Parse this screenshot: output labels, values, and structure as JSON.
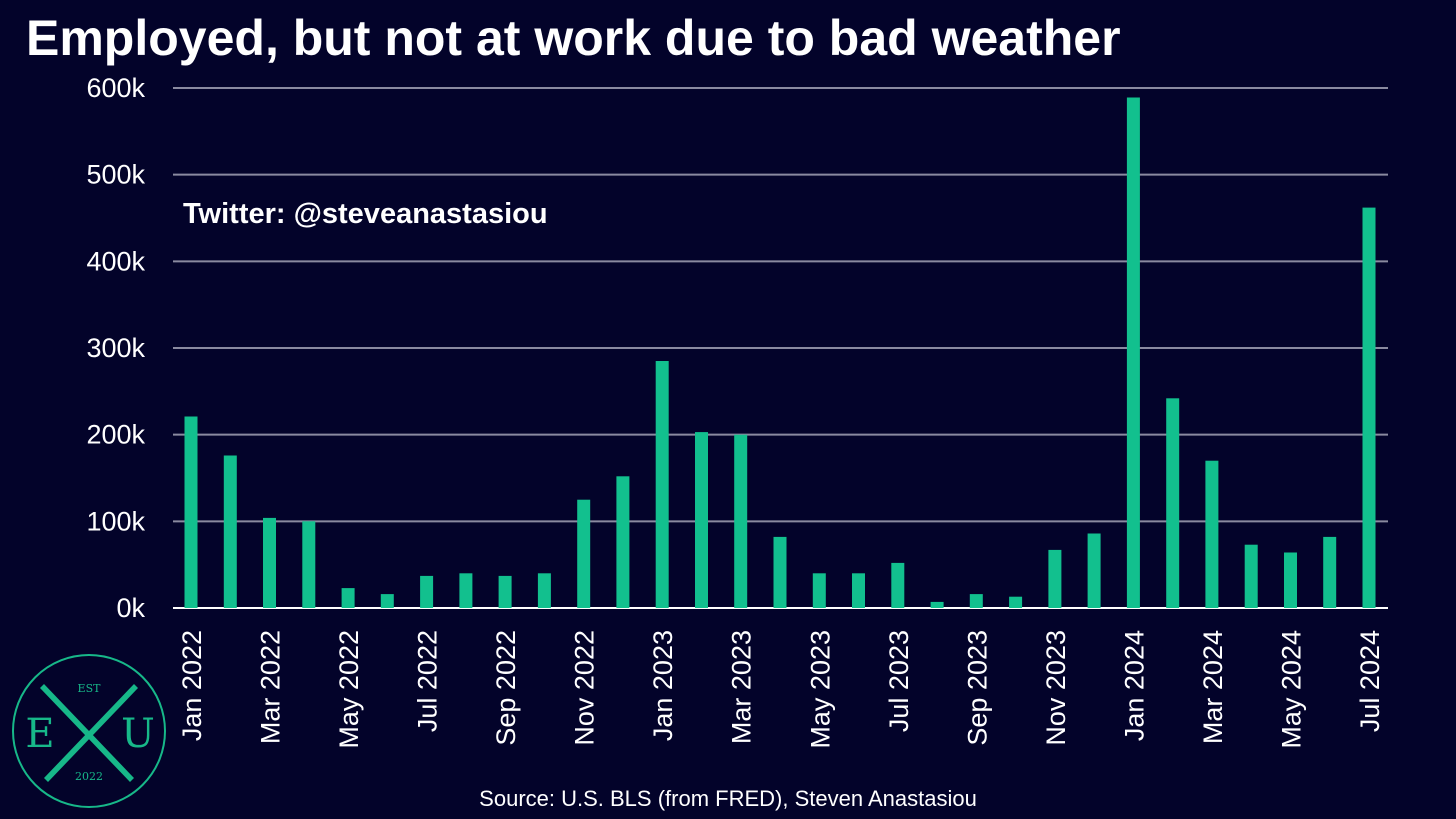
{
  "title": "Employed, but not at work due to bad weather",
  "watermark": "Twitter: @steveanastasiou",
  "source": "Source: U.S. BLS (from FRED), Steven Anastasiou",
  "logo": {
    "est": "EST",
    "left_letter": "E",
    "right_letter": "U",
    "year": "2022",
    "color": "#17b889"
  },
  "colors": {
    "background": "#03032a",
    "bar": "#12c08e",
    "grid": "#8a8aa0",
    "text": "#ffffff"
  },
  "chart_data": {
    "type": "bar",
    "title": "Employed, but not at work due to bad weather",
    "xlabel": "",
    "ylabel": "",
    "ylim": [
      0,
      600000
    ],
    "yticks": [
      0,
      100000,
      200000,
      300000,
      400000,
      500000,
      600000
    ],
    "ytick_labels": [
      "0k",
      "100k",
      "200k",
      "300k",
      "400k",
      "500k",
      "600k"
    ],
    "grid": true,
    "categories": [
      "Jan 2022",
      "Feb 2022",
      "Mar 2022",
      "Apr 2022",
      "May 2022",
      "Jun 2022",
      "Jul 2022",
      "Aug 2022",
      "Sep 2022",
      "Oct 2022",
      "Nov 2022",
      "Dec 2022",
      "Jan 2023",
      "Feb 2023",
      "Mar 2023",
      "Apr 2023",
      "May 2023",
      "Jun 2023",
      "Jul 2023",
      "Aug 2023",
      "Sep 2023",
      "Oct 2023",
      "Nov 2023",
      "Dec 2023",
      "Jan 2024",
      "Feb 2024",
      "Mar 2024",
      "Apr 2024",
      "May 2024",
      "Jun 2024",
      "Jul 2024"
    ],
    "xtick_labels": [
      "Jan 2022",
      "",
      "Mar 2022",
      "",
      "May 2022",
      "",
      "Jul 2022",
      "",
      "Sep 2022",
      "",
      "Nov 2022",
      "",
      "Jan 2023",
      "",
      "Mar 2023",
      "",
      "May 2023",
      "",
      "Jul 2023",
      "",
      "Sep 2023",
      "",
      "Nov 2023",
      "",
      "Jan 2024",
      "",
      "Mar 2024",
      "",
      "May 2024",
      "",
      "Jul 2024"
    ],
    "values": [
      221000,
      176000,
      104000,
      100000,
      23000,
      16000,
      37000,
      40000,
      37000,
      40000,
      125000,
      152000,
      285000,
      203000,
      200000,
      82000,
      40000,
      40000,
      52000,
      7000,
      16000,
      13000,
      67000,
      86000,
      589000,
      242000,
      170000,
      73000,
      64000,
      82000,
      462000
    ]
  }
}
